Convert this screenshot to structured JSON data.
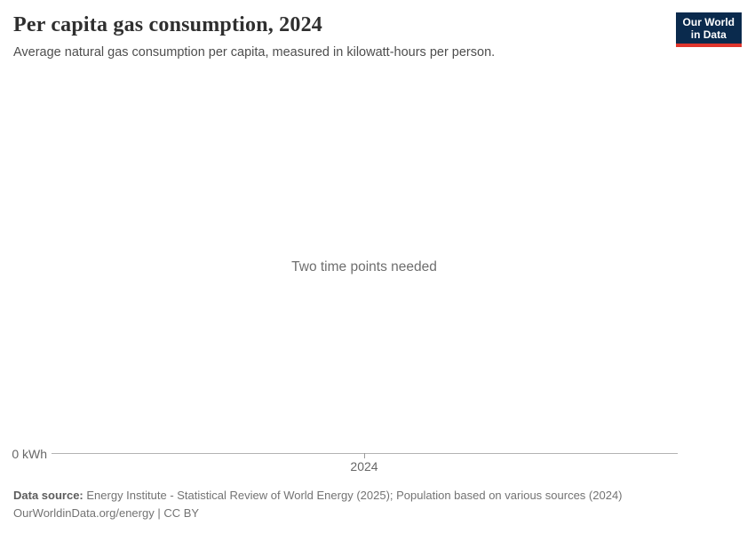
{
  "header": {
    "title": "Per capita gas consumption, 2024",
    "subtitle": "Average natural gas consumption per capita, measured in kilowatt-hours per person."
  },
  "logo": {
    "line1": "Our World",
    "line2": "in Data",
    "background_color": "#0a2a4d",
    "accent_color": "#e0352c",
    "text_color": "#ffffff"
  },
  "chart": {
    "empty_message": "Two time points needed",
    "y_axis_tick": "0 kWh",
    "x_axis_tick": "2024",
    "axis_line_color": "#b3b3b3",
    "tick_label_color": "#676767"
  },
  "chart_data": {
    "type": "line",
    "title": "Per capita gas consumption, 2024",
    "subtitle": "Average natural gas consumption per capita, measured in kilowatt-hours per person.",
    "x_ticks": [
      "2024"
    ],
    "y_ticks": [
      "0 kWh"
    ],
    "ylabel": "kWh",
    "series": [],
    "annotations": [
      "Two time points needed"
    ],
    "grid": false,
    "legend_position": "none"
  },
  "footer": {
    "datasource_label": "Data source:",
    "datasource_text": "Energy Institute - Statistical Review of World Energy (2025); Population based on various sources (2024)",
    "license_text": "OurWorldinData.org/energy | CC BY"
  }
}
